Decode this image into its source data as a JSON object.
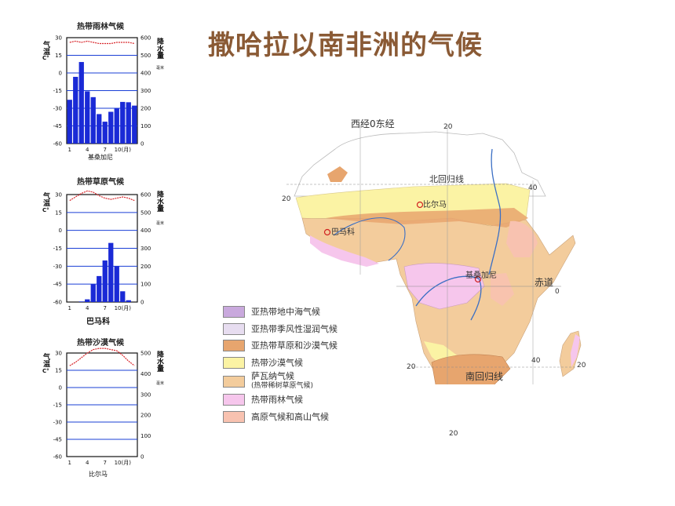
{
  "title": "撒哈拉以南非洲的气候",
  "charts": [
    {
      "id": "rainforest",
      "title": "热带雨林气候",
      "station": "基桑加尼",
      "left_label": "气温",
      "left_unit": "C°",
      "right_label": "降水量",
      "right_unit": "毫米",
      "temp_ticks": [
        "30",
        "15",
        "0",
        "-15",
        "-30",
        "-45",
        "-60"
      ],
      "precip_ticks": [
        "600",
        "500",
        "400",
        "300",
        "200",
        "100",
        "0"
      ],
      "month_ticks": [
        "1",
        "4",
        "7",
        "10(月)"
      ],
      "temperature": [
        26,
        27,
        26,
        27,
        26,
        25,
        25,
        25,
        26,
        26,
        26,
        25
      ],
      "precipitation": [
        248,
        378,
        462,
        296,
        263,
        167,
        124,
        180,
        199,
        236,
        234,
        215
      ]
    },
    {
      "id": "savanna",
      "title": "热带草原气候",
      "station": "巴马科",
      "left_label": "气温",
      "left_unit": "C°",
      "right_label": "降水量",
      "right_unit": "毫米",
      "temp_ticks": [
        "30",
        "15",
        "0",
        "-15",
        "-30",
        "-45",
        "-60"
      ],
      "precip_ticks": [
        "600",
        "500",
        "400",
        "300",
        "200",
        "100",
        "0"
      ],
      "month_ticks": [
        "1",
        "4",
        "7",
        "10(月)"
      ],
      "temperature": [
        25,
        28,
        31,
        33,
        32,
        29,
        27,
        26,
        27,
        28,
        27,
        25
      ],
      "precipitation": [
        0,
        0,
        3,
        15,
        100,
        145,
        232,
        330,
        200,
        60,
        10,
        0
      ]
    },
    {
      "id": "desert",
      "title": "热带沙漠气候",
      "station": "比尔马",
      "left_label": "气温",
      "left_unit": "C°",
      "right_label": "降水量",
      "right_unit": "毫米",
      "temp_ticks": [
        "30",
        "15",
        "0",
        "-15",
        "-30",
        "-45",
        "-60"
      ],
      "precip_ticks": [
        "500",
        "400",
        "300",
        "200",
        "100",
        "0"
      ],
      "month_ticks": [
        "1",
        "4",
        "7",
        "10(月)"
      ],
      "temperature": [
        19,
        22,
        26,
        30,
        33,
        34,
        34,
        33,
        32,
        28,
        23,
        19
      ],
      "precipitation": [
        0,
        0,
        0,
        0,
        0,
        0,
        0,
        0,
        0,
        0,
        0,
        0
      ]
    }
  ],
  "map": {
    "meridian_label": "西经0东经",
    "lon_20_top": "20",
    "lon_40": "40",
    "lat_20_left": "20",
    "lat_0": "0",
    "lat_20_south_left": "20",
    "lat_20_south_right": "20",
    "lon_40_south": "40",
    "lon_20_bottom": "20",
    "tropic_cancer": "北回归线",
    "tropic_capricorn": "南回归线",
    "equator": "赤道",
    "cities": [
      "比尔马",
      "巴马科",
      "基桑加尼"
    ]
  },
  "legend": [
    {
      "label": "亚热带地中海气候",
      "color": "#c9a9dd"
    },
    {
      "label": "亚热带季风性湿润气候",
      "color": "#e7ddf0"
    },
    {
      "label": "亚热带草原和沙漠气候",
      "color": "#e7a56e"
    },
    {
      "label": "热带沙漠气候",
      "color": "#fbf3a4"
    },
    {
      "label": "萨瓦纳气候",
      "sub": "(热带稀树草原气候)",
      "color": "#f3cc9c"
    },
    {
      "label": "热带雨林气候",
      "color": "#f6c6ec"
    },
    {
      "label": "高原气候和高山气候",
      "color": "#f8c2b0"
    }
  ]
}
